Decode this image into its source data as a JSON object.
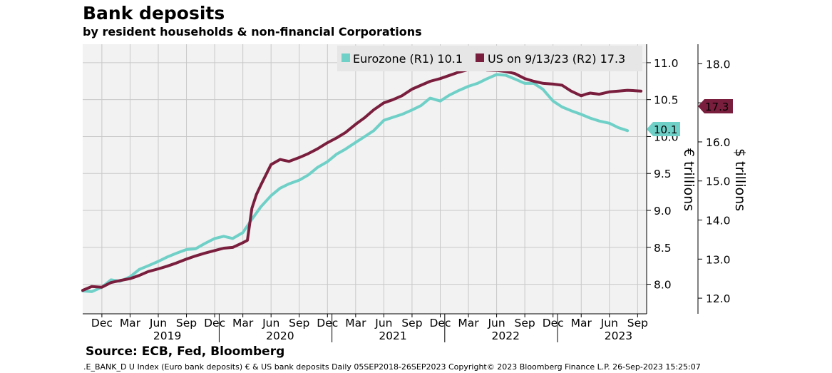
{
  "title": "Bank deposits",
  "subtitle": "by resident households & non-financial Corporations",
  "source": "Source: ECB, Fed, Bloomberg",
  "footer": ".E_BANK_D U Index (Euro bank deposits) € & US bank deposits  Daily 05SEP2018-26SEP2023 Copyright© 2023 Bloomberg Finance L.P. 26-Sep-2023 15:25:07",
  "chart_data": {
    "type": "line",
    "colors": {
      "eurozone": "#6fd0c8",
      "us": "#7a1e3e",
      "plot_bg": "#f2f2f2",
      "grid": "#c8c8c8"
    },
    "x_start": 2018.75,
    "x_end": 2023.75,
    "month_ticks": [
      {
        "label": "Dec",
        "t": 2018.92
      },
      {
        "label": "Mar",
        "t": 2019.17
      },
      {
        "label": "Jun",
        "t": 2019.42
      },
      {
        "label": "Sep",
        "t": 2019.67
      },
      {
        "label": "Dec",
        "t": 2019.92
      },
      {
        "label": "Mar",
        "t": 2020.17
      },
      {
        "label": "Jun",
        "t": 2020.42
      },
      {
        "label": "Sep",
        "t": 2020.67
      },
      {
        "label": "Dec",
        "t": 2020.92
      },
      {
        "label": "Mar",
        "t": 2021.17
      },
      {
        "label": "Jun",
        "t": 2021.42
      },
      {
        "label": "Sep",
        "t": 2021.67
      },
      {
        "label": "Dec",
        "t": 2021.92
      },
      {
        "label": "Mar",
        "t": 2022.17
      },
      {
        "label": "Jun",
        "t": 2022.42
      },
      {
        "label": "Sep",
        "t": 2022.67
      },
      {
        "label": "Dec",
        "t": 2022.92
      },
      {
        "label": "Mar",
        "t": 2023.17
      },
      {
        "label": "Jun",
        "t": 2023.42
      },
      {
        "label": "Sep",
        "t": 2023.67
      }
    ],
    "years": [
      {
        "label": "2019",
        "t": 2019.5
      },
      {
        "label": "2020",
        "t": 2020.5
      },
      {
        "label": "2021",
        "t": 2021.5
      },
      {
        "label": "2022",
        "t": 2022.5
      },
      {
        "label": "2023",
        "t": 2023.5
      }
    ],
    "year_separators": [
      2019.96,
      2020.96,
      2021.96,
      2022.96
    ],
    "left_axis": {
      "label": "€ trillions",
      "min": 7.6,
      "max": 11.25,
      "ticks": [
        "8.0",
        "8.5",
        "9.0",
        "9.5",
        "10.0",
        "10.5",
        "11.0"
      ]
    },
    "right_axis": {
      "label": "$ trillions",
      "min": 11.6,
      "max": 18.5,
      "ticks": [
        "12.0",
        "13.0",
        "14.0",
        "15.0",
        "16.0",
        "17.0",
        "18.0"
      ]
    },
    "legend": [
      {
        "key": "eurozone",
        "label": "Eurozone (R1) 10.1"
      },
      {
        "key": "us",
        "label": "US on 9/13/23 (R2) 17.3"
      }
    ],
    "last_value_tags": {
      "eurozone": "10.1",
      "us": "17.3"
    },
    "series": [
      {
        "name": "Eurozone",
        "axis": "left",
        "x": [
          2018.75,
          2018.83,
          2018.92,
          2019.0,
          2019.08,
          2019.17,
          2019.25,
          2019.33,
          2019.42,
          2019.5,
          2019.58,
          2019.67,
          2019.75,
          2019.83,
          2019.92,
          2020.0,
          2020.08,
          2020.17,
          2020.25,
          2020.33,
          2020.42,
          2020.5,
          2020.58,
          2020.67,
          2020.75,
          2020.83,
          2020.92,
          2021.0,
          2021.08,
          2021.17,
          2021.25,
          2021.33,
          2021.42,
          2021.5,
          2021.58,
          2021.67,
          2021.75,
          2021.83,
          2021.92,
          2022.0,
          2022.08,
          2022.17,
          2022.25,
          2022.33,
          2022.42,
          2022.5,
          2022.58,
          2022.67,
          2022.75,
          2022.83,
          2022.92,
          2023.0,
          2023.08,
          2023.17,
          2023.25,
          2023.33,
          2023.42,
          2023.5,
          2023.58
        ],
        "values": [
          7.91,
          7.9,
          7.96,
          8.06,
          8.04,
          8.1,
          8.2,
          8.25,
          8.31,
          8.37,
          8.42,
          8.47,
          8.48,
          8.55,
          8.62,
          8.65,
          8.62,
          8.7,
          8.88,
          9.05,
          9.2,
          9.3,
          9.36,
          9.41,
          9.48,
          9.58,
          9.66,
          9.76,
          9.83,
          9.92,
          10.0,
          10.08,
          10.22,
          10.26,
          10.3,
          10.36,
          10.42,
          10.52,
          10.48,
          10.56,
          10.62,
          10.68,
          10.72,
          10.78,
          10.84,
          10.83,
          10.78,
          10.72,
          10.72,
          10.64,
          10.48,
          10.4,
          10.35,
          10.3,
          10.25,
          10.21,
          10.18,
          10.12,
          10.08
        ]
      },
      {
        "name": "US",
        "axis": "right",
        "x": [
          2018.75,
          2018.83,
          2018.92,
          2019.0,
          2019.08,
          2019.17,
          2019.25,
          2019.33,
          2019.42,
          2019.5,
          2019.58,
          2019.67,
          2019.75,
          2019.83,
          2019.92,
          2020.0,
          2020.08,
          2020.17,
          2020.21,
          2020.25,
          2020.29,
          2020.33,
          2020.42,
          2020.5,
          2020.58,
          2020.67,
          2020.75,
          2020.83,
          2020.92,
          2021.0,
          2021.08,
          2021.17,
          2021.25,
          2021.33,
          2021.42,
          2021.5,
          2021.58,
          2021.67,
          2021.75,
          2021.83,
          2021.92,
          2022.0,
          2022.08,
          2022.17,
          2022.25,
          2022.33,
          2022.42,
          2022.5,
          2022.58,
          2022.67,
          2022.75,
          2022.83,
          2022.92,
          2023.0,
          2023.08,
          2023.17,
          2023.21,
          2023.25,
          2023.33,
          2023.42,
          2023.5,
          2023.58,
          2023.7
        ],
        "values": [
          12.2,
          12.3,
          12.28,
          12.4,
          12.45,
          12.5,
          12.58,
          12.68,
          12.75,
          12.82,
          12.9,
          13.0,
          13.08,
          13.15,
          13.22,
          13.28,
          13.3,
          13.42,
          13.48,
          14.3,
          14.65,
          14.9,
          15.42,
          15.55,
          15.5,
          15.6,
          15.7,
          15.82,
          15.98,
          16.1,
          16.24,
          16.45,
          16.62,
          16.82,
          17.0,
          17.08,
          17.18,
          17.35,
          17.45,
          17.55,
          17.62,
          17.7,
          17.78,
          17.85,
          17.88,
          17.84,
          17.83,
          17.8,
          17.75,
          17.62,
          17.55,
          17.5,
          17.48,
          17.45,
          17.3,
          17.18,
          17.22,
          17.25,
          17.22,
          17.28,
          17.3,
          17.32,
          17.3
        ]
      }
    ]
  }
}
